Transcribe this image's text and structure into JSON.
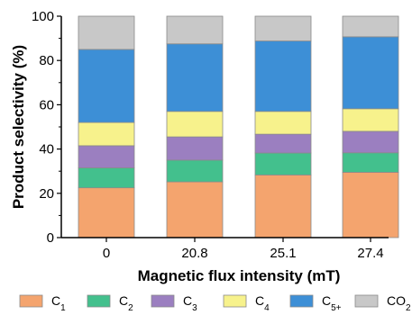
{
  "chart_data": {
    "type": "bar",
    "stacked": true,
    "categories": [
      "0",
      "20.8",
      "25.1",
      "27.4"
    ],
    "xlabel": "Magnetic flux intensity (mT)",
    "ylabel": "Product selectivity (%)",
    "ylim": [
      0,
      100
    ],
    "yticks": [
      "0",
      "20",
      "40",
      "60",
      "80",
      "100"
    ],
    "grid": false,
    "legend_position": "bottom",
    "series": [
      {
        "name": "C1",
        "main": "C",
        "sub": "1",
        "color": "#F4A46E",
        "values": [
          22.5,
          25.2,
          28.3,
          29.5
        ]
      },
      {
        "name": "C2",
        "main": "C",
        "sub": "2",
        "color": "#43C08D",
        "values": [
          9.0,
          9.8,
          9.9,
          8.8
        ]
      },
      {
        "name": "C3",
        "main": "C",
        "sub": "3",
        "color": "#9B7FC0",
        "values": [
          10.0,
          10.5,
          8.5,
          9.7
        ]
      },
      {
        "name": "C4",
        "main": "C",
        "sub": "4",
        "color": "#F7F28C",
        "values": [
          10.5,
          11.5,
          10.3,
          10.2
        ]
      },
      {
        "name": "C5+",
        "main": "C",
        "sub": "5+",
        "color": "#3D8FD6",
        "values": [
          33.0,
          30.5,
          31.8,
          32.5
        ]
      },
      {
        "name": "CO2",
        "main": "CO",
        "sub": "2",
        "color": "#C8C8C8",
        "values": [
          15.0,
          12.5,
          11.2,
          9.3
        ]
      }
    ]
  }
}
